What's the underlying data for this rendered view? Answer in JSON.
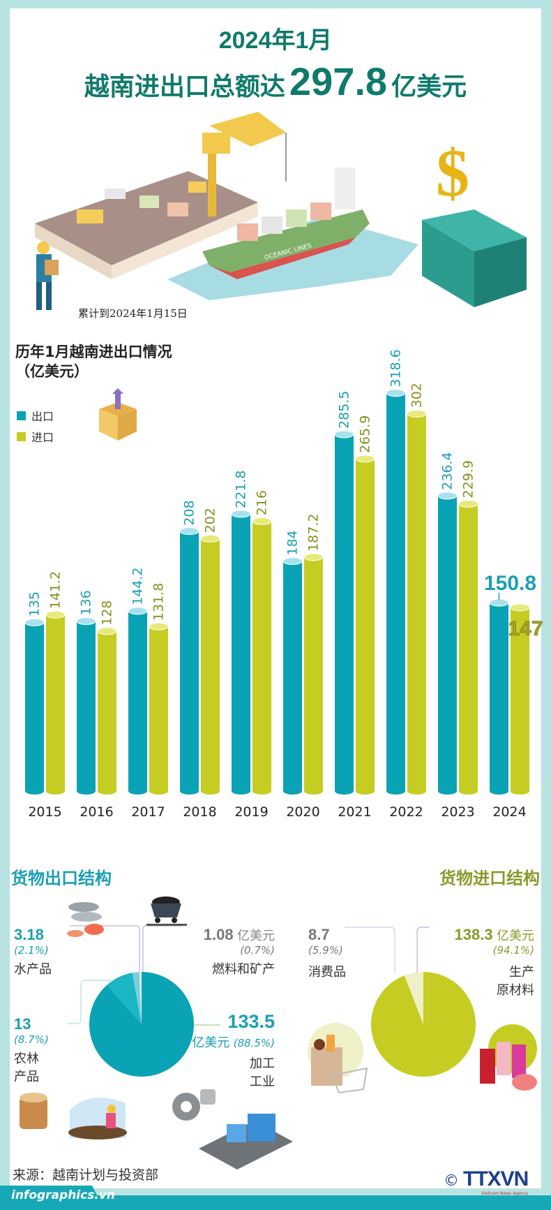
{
  "header": {
    "title_line1": "2024年1月",
    "title_line2_prefix": "越南进出口总额达",
    "title_value": "297.8",
    "title_unit": "亿美元"
  },
  "date_note": "累计到2024年1月15日",
  "illustration": {
    "ship_name": "OCEANIC LINES",
    "dollar_symbol": "$"
  },
  "chart_data": [
    {
      "type": "bar",
      "title": "历年1月越南进出口情况",
      "subtitle": "（亿美元）",
      "xlabel": "",
      "ylabel": "",
      "grid": false,
      "legend_position": "top-left",
      "categories": [
        "2015",
        "2016",
        "2017",
        "2018",
        "2019",
        "2020",
        "2021",
        "2022",
        "2023",
        "2024"
      ],
      "series": [
        {
          "name": "出口",
          "color": "#0aa3b5",
          "label_color": "#1a9fb2",
          "values": [
            135,
            136,
            144.2,
            208,
            221.8,
            184,
            285.5,
            318.6,
            236.4,
            150.8
          ],
          "labels": [
            "135",
            "136",
            "144.2",
            "208",
            "221.8",
            "184",
            "285.5",
            "318.6",
            "236.4",
            "150.8"
          ]
        },
        {
          "name": "进口",
          "color": "#c5cd22",
          "label_color": "#8a8f1e",
          "values": [
            141.2,
            128,
            131.8,
            202,
            216,
            187.2,
            265.9,
            302,
            229.9,
            147
          ],
          "labels": [
            "141.2",
            "128",
            "131.8",
            "202",
            "216",
            "187.2",
            "265.9",
            "302",
            "229.9",
            "147"
          ]
        }
      ],
      "ylim": [
        0,
        330
      ]
    },
    {
      "type": "pie",
      "title": "货物出口结构",
      "unit": "亿美元",
      "slices": [
        {
          "label": "加工工业",
          "value": 133.5,
          "percent": "88.5%",
          "color": "#0aa3b5"
        },
        {
          "label": "农林产品",
          "value": 13,
          "percent": "8.7%",
          "color": "#1bb6c4"
        },
        {
          "label": "水产品",
          "value": 3.18,
          "percent": "2.1%",
          "color": "#7ccfd9"
        },
        {
          "label": "燃料和矿产",
          "value": 1.08,
          "percent": "0.7%",
          "color": "#e4f4f6"
        }
      ]
    },
    {
      "type": "pie",
      "title": "货物进口结构",
      "unit": "亿美元",
      "slices": [
        {
          "label": "生产原材料",
          "value": 138.3,
          "percent": "94.1%",
          "color": "#c5cd22"
        },
        {
          "label": "消费品",
          "value": 8.7,
          "percent": "5.9%",
          "color": "#eef0c8"
        }
      ]
    }
  ],
  "export_labels": {
    "seafood": {
      "value": "3.18",
      "pct": "(2.1%)",
      "name": "水产品"
    },
    "fuel": {
      "value": "1.08",
      "unit": "亿美元",
      "pct": "(0.7%)",
      "name": "燃料和矿产"
    },
    "agri": {
      "value": "13",
      "pct": "(8.7%)",
      "name_line1": "农林",
      "name_line2": "产品"
    },
    "processing": {
      "value": "133.5",
      "unit": "亿美元",
      "pct": "(88.5%)",
      "name_line1": "加工",
      "name_line2": "工业"
    }
  },
  "import_labels": {
    "consumer": {
      "value": "8.7",
      "pct": "(5.9%)",
      "name": "消费品"
    },
    "materials": {
      "value": "138.3",
      "unit": "亿美元",
      "pct": "(94.1%)",
      "name_line1": "生产",
      "name_line2": "原材料"
    }
  },
  "footer": {
    "source": "来源：越南计划与投资部",
    "site": "infographics.vn",
    "copyright": "©",
    "brand": "TTXVN",
    "brand_sub": "Vietnam News Agency"
  },
  "colors": {
    "accent_dark": "#0f7a6b",
    "export": "#0aa3b5",
    "import": "#c5cd22",
    "border": "#b9e3e2"
  }
}
